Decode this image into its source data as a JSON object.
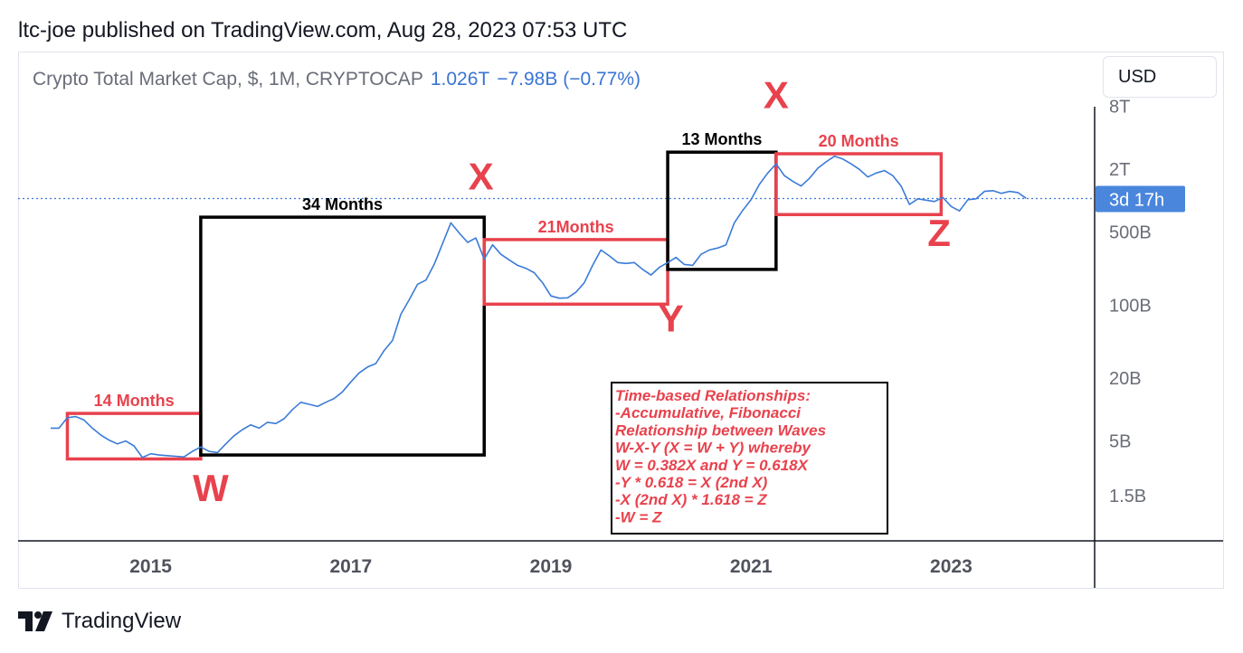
{
  "header": {
    "published": "ltc-joe published on TradingView.com, Aug 28, 2023 07:53 UTC"
  },
  "legend": {
    "symbol": "Crypto Total Market Cap, $, 1M, CRYPTOCAP",
    "price": "1.026T",
    "change": "−7.98B (−0.77%)"
  },
  "currency_button": "USD",
  "footer": {
    "brand": "TradingView"
  },
  "colors": {
    "line": "#3b7bd8",
    "red": "#e8424d",
    "black": "#000000",
    "badge": "#4a86dc"
  },
  "chart_data": {
    "type": "line",
    "title": "Crypto Total Market Cap",
    "interval": "1M",
    "scale": "log",
    "y_unit": "USD",
    "x_range": [
      2014.0,
      2024.0
    ],
    "y_tick_labels": [
      "8T",
      "2T",
      "500B",
      "100B",
      "20B",
      "5B",
      "1.5B"
    ],
    "y_tick_values": [
      8000000000000.0,
      2000000000000.0,
      500000000000.0,
      100000000000.0,
      20000000000.0,
      5000000000.0,
      1500000000.0
    ],
    "x_tick_labels": [
      "2015",
      "2017",
      "2019",
      "2021",
      "2023"
    ],
    "x_tick_values": [
      2015,
      2017,
      2019,
      2021,
      2023
    ],
    "last_price": 1026000000000.0,
    "countdown_label": "3d 17h",
    "series": [
      {
        "name": "Total Market Cap",
        "points": [
          [
            2014.0,
            6500000000.0
          ],
          [
            2014.083,
            6500000000.0
          ],
          [
            2014.167,
            8200000000.0
          ],
          [
            2014.25,
            8400000000.0
          ],
          [
            2014.333,
            7800000000.0
          ],
          [
            2014.417,
            6500000000.0
          ],
          [
            2014.5,
            5600000000.0
          ],
          [
            2014.583,
            5000000000.0
          ],
          [
            2014.667,
            4600000000.0
          ],
          [
            2014.75,
            4900000000.0
          ],
          [
            2014.833,
            4400000000.0
          ],
          [
            2014.917,
            3400000000.0
          ],
          [
            2015.0,
            3700000000.0
          ],
          [
            2015.083,
            3600000000.0
          ],
          [
            2015.167,
            3550000000.0
          ],
          [
            2015.25,
            3500000000.0
          ],
          [
            2015.333,
            3450000000.0
          ],
          [
            2015.417,
            3900000000.0
          ],
          [
            2015.5,
            4300000000.0
          ],
          [
            2015.583,
            3900000000.0
          ],
          [
            2015.667,
            3800000000.0
          ],
          [
            2015.75,
            4600000000.0
          ],
          [
            2015.833,
            5500000000.0
          ],
          [
            2015.917,
            6300000000.0
          ],
          [
            2016.0,
            7000000000.0
          ],
          [
            2016.083,
            6500000000.0
          ],
          [
            2016.167,
            7400000000.0
          ],
          [
            2016.25,
            7200000000.0
          ],
          [
            2016.333,
            8000000000.0
          ],
          [
            2016.417,
            9800000000.0
          ],
          [
            2016.5,
            11500000000.0
          ],
          [
            2016.583,
            11000000000.0
          ],
          [
            2016.667,
            10500000000.0
          ],
          [
            2016.75,
            11500000000.0
          ],
          [
            2016.833,
            12500000000.0
          ],
          [
            2016.917,
            14500000000.0
          ],
          [
            2017.0,
            18000000000.0
          ],
          [
            2017.083,
            22000000000.0
          ],
          [
            2017.167,
            25000000000.0
          ],
          [
            2017.25,
            27000000000.0
          ],
          [
            2017.333,
            36000000000.0
          ],
          [
            2017.417,
            45000000000.0
          ],
          [
            2017.5,
            80000000000.0
          ],
          [
            2017.583,
            110000000000.0
          ],
          [
            2017.667,
            155000000000.0
          ],
          [
            2017.75,
            170000000000.0
          ],
          [
            2017.833,
            240000000000.0
          ],
          [
            2017.917,
            380000000000.0
          ],
          [
            2018.0,
            600000000000.0
          ],
          [
            2018.083,
            480000000000.0
          ],
          [
            2018.167,
            390000000000.0
          ],
          [
            2018.25,
            430000000000.0
          ],
          [
            2018.333,
            270000000000.0
          ],
          [
            2018.417,
            370000000000.0
          ],
          [
            2018.5,
            300000000000.0
          ],
          [
            2018.583,
            265000000000.0
          ],
          [
            2018.667,
            235000000000.0
          ],
          [
            2018.75,
            220000000000.0
          ],
          [
            2018.833,
            200000000000.0
          ],
          [
            2018.917,
            160000000000.0
          ],
          [
            2019.0,
            120000000000.0
          ],
          [
            2019.083,
            114000000000.0
          ],
          [
            2019.167,
            115000000000.0
          ],
          [
            2019.25,
            130000000000.0
          ],
          [
            2019.333,
            160000000000.0
          ],
          [
            2019.417,
            235000000000.0
          ],
          [
            2019.5,
            330000000000.0
          ],
          [
            2019.583,
            290000000000.0
          ],
          [
            2019.667,
            250000000000.0
          ],
          [
            2019.75,
            245000000000.0
          ],
          [
            2019.833,
            250000000000.0
          ],
          [
            2019.917,
            215000000000.0
          ],
          [
            2020.0,
            190000000000.0
          ],
          [
            2020.083,
            225000000000.0
          ],
          [
            2020.167,
            250000000000.0
          ],
          [
            2020.25,
            280000000000.0
          ],
          [
            2020.333,
            240000000000.0
          ],
          [
            2020.417,
            235000000000.0
          ],
          [
            2020.5,
            300000000000.0
          ],
          [
            2020.583,
            330000000000.0
          ],
          [
            2020.667,
            345000000000.0
          ],
          [
            2020.75,
            370000000000.0
          ],
          [
            2020.833,
            600000000000.0
          ],
          [
            2020.917,
            790000000000.0
          ],
          [
            2021.0,
            1000000000000.0
          ],
          [
            2021.083,
            1400000000000.0
          ],
          [
            2021.167,
            1800000000000.0
          ],
          [
            2021.25,
            2200000000000.0
          ],
          [
            2021.333,
            1700000000000.0
          ],
          [
            2021.417,
            1500000000000.0
          ],
          [
            2021.5,
            1350000000000.0
          ],
          [
            2021.583,
            1600000000000.0
          ],
          [
            2021.667,
            2000000000000.0
          ],
          [
            2021.75,
            2300000000000.0
          ],
          [
            2021.833,
            2600000000000.0
          ],
          [
            2021.917,
            2450000000000.0
          ],
          [
            2022.0,
            2200000000000.0
          ],
          [
            2022.083,
            1950000000000.0
          ],
          [
            2022.167,
            1650000000000.0
          ],
          [
            2022.25,
            1800000000000.0
          ],
          [
            2022.333,
            1900000000000.0
          ],
          [
            2022.417,
            1700000000000.0
          ],
          [
            2022.5,
            1350000000000.0
          ],
          [
            2022.583,
            900000000000.0
          ],
          [
            2022.667,
            1020000000000.0
          ],
          [
            2022.75,
            990000000000.0
          ],
          [
            2022.833,
            960000000000.0
          ],
          [
            2022.917,
            1050000000000.0
          ],
          [
            2023.0,
            860000000000.0
          ],
          [
            2023.083,
            780000000000.0
          ],
          [
            2023.167,
            1000000000000.0
          ],
          [
            2023.25,
            1020000000000.0
          ],
          [
            2023.333,
            1200000000000.0
          ],
          [
            2023.417,
            1220000000000.0
          ],
          [
            2023.5,
            1150000000000.0
          ],
          [
            2023.583,
            1200000000000.0
          ],
          [
            2023.667,
            1170000000000.0
          ],
          [
            2023.75,
            1030000000000.0
          ]
        ]
      }
    ],
    "boxes": [
      {
        "label": "14 Months",
        "x0": 2014.167,
        "x1": 2015.5,
        "y0": 3300000000.0,
        "y1": 9000000000.0,
        "color": "red"
      },
      {
        "label": "34 Months",
        "x0": 2015.5,
        "x1": 2018.333,
        "y0": 3600000000.0,
        "y1": 680000000000.0,
        "color": "black"
      },
      {
        "label": "21Months",
        "x0": 2018.333,
        "x1": 2020.167,
        "y0": 100000000000.0,
        "y1": 415000000000.0,
        "color": "red"
      },
      {
        "label": "13 Months",
        "x0": 2020.167,
        "x1": 2021.25,
        "y0": 215000000000.0,
        "y1": 2850000000000.0,
        "color": "black"
      },
      {
        "label": "20 Months",
        "x0": 2021.25,
        "x1": 2022.9,
        "y0": 720000000000.0,
        "y1": 2750000000000.0,
        "color": "red"
      }
    ],
    "wave_labels": [
      {
        "text": "W",
        "x": 2015.6,
        "y": 1300000000.0
      },
      {
        "text": "X",
        "x": 2018.3,
        "y": 1250000000000.0
      },
      {
        "text": "Y",
        "x": 2020.2,
        "y": 55000000000.0
      },
      {
        "text": "X",
        "x": 2021.25,
        "y": 7500000000000.0
      },
      {
        "text": "Z",
        "x": 2022.88,
        "y": 360000000000.0
      }
    ],
    "annotation": [
      "Time-based Relationships:",
      "-Accumulative, Fibonacci",
      "Relationship between Waves",
      "W-X-Y (X = W + Y) whereby",
      "W = 0.382X and Y = 0.618X",
      "-Y * 0.618 = X (2nd X)",
      "-X (2nd X) * 1.618 = Z",
      "-W = Z"
    ]
  }
}
